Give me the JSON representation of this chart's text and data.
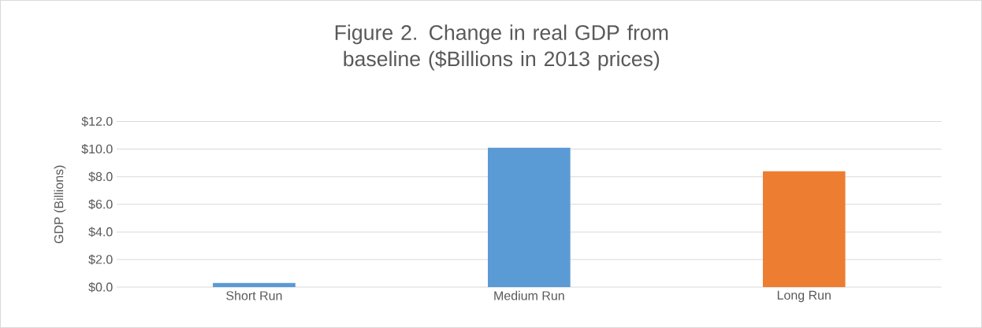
{
  "chart_data": {
    "type": "bar",
    "title": "Figure 2. Change in real GDP from baseline ($Billions in 2013 prices)",
    "ylabel": "GDP (Billions)",
    "categories": [
      "Short Run",
      "Medium Run",
      "Long Run"
    ],
    "values": [
      0.3,
      10.1,
      8.4
    ],
    "colors": [
      "#5b9bd5",
      "#5b9bd5",
      "#ed7d31"
    ],
    "ylim": [
      0,
      12
    ],
    "yticks": [
      {
        "value": 0,
        "label": "$0.0"
      },
      {
        "value": 2,
        "label": "$2.0"
      },
      {
        "value": 4,
        "label": "$4.0"
      },
      {
        "value": 6,
        "label": "$6.0"
      },
      {
        "value": 8,
        "label": "$8.0"
      },
      {
        "value": 10,
        "label": "$10.0"
      },
      {
        "value": 12,
        "label": "$12.0"
      }
    ],
    "grid": "y"
  }
}
